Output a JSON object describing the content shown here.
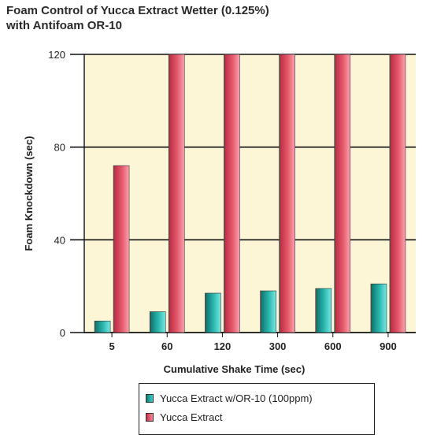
{
  "chart_data": {
    "type": "bar",
    "title_line1": "Foam Control of Yucca Extract Wetter (0.125%)",
    "title_line2": "with Antifoam OR-10",
    "xlabel": "Cumulative Shake Time (sec)",
    "ylabel": "Foam Knockdown (sec)",
    "ylim": [
      0,
      120
    ],
    "yticks": [
      "0",
      "40",
      "80",
      "120"
    ],
    "grid": true,
    "legend_placement": "bottom",
    "categories": [
      "5",
      "60",
      "120",
      "300",
      "600",
      "900"
    ],
    "series": [
      {
        "name": "Yucca Extract w/OR-10 (100ppm)",
        "values": [
          5,
          9,
          17,
          18,
          19,
          21
        ],
        "color": "#1fa49e"
      },
      {
        "name": "Yucca Extract",
        "values": [
          72,
          120,
          120,
          120,
          120,
          120
        ],
        "color": "#e05a6a"
      }
    ],
    "plot_background": "#fcf6d6"
  }
}
